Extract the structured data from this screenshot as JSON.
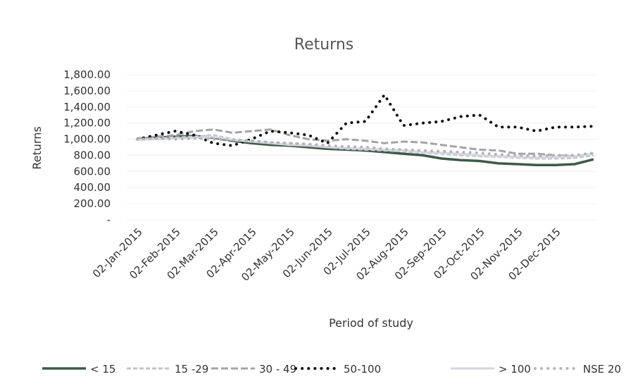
{
  "chart_data": {
    "type": "line",
    "title": "Returns",
    "y_label": "Returns",
    "x_label": "Period of study",
    "grid": true,
    "categories": [
      "02-Jan-2015",
      null,
      "02-Feb-2015",
      null,
      "02-Mar-2015",
      null,
      "02-Apr-2015",
      null,
      "02-May-2015",
      null,
      "02-Jun-2015",
      null,
      "02-Jul-2015",
      null,
      "02-Aug-2015",
      null,
      "02-Sep-2015",
      null,
      "02-Oct-2015",
      null,
      "02-Nov-2015",
      null,
      "02-Dec-2015",
      null,
      null
    ],
    "ylim": [
      0,
      1800
    ],
    "yticks": [
      {
        "value": 0,
        "label": "-"
      },
      {
        "value": 200,
        "label": "200.00"
      },
      {
        "value": 400,
        "label": "400.00"
      },
      {
        "value": 600,
        "label": "600.00"
      },
      {
        "value": 800,
        "label": "800.00"
      },
      {
        "value": 1000,
        "label": "1,000.00"
      },
      {
        "value": 1200,
        "label": "1,200.00"
      },
      {
        "value": 1400,
        "label": "1,400.00"
      },
      {
        "value": 1600,
        "label": "1,600.00"
      },
      {
        "value": 1800,
        "label": "1,800.00"
      }
    ],
    "series": [
      {
        "name": "< 15",
        "color": "#3d5a48",
        "dash": "solid",
        "values": [
          1000,
          1020,
          1030,
          1040,
          1020,
          980,
          950,
          930,
          920,
          900,
          880,
          870,
          860,
          840,
          820,
          800,
          760,
          740,
          730,
          700,
          690,
          680,
          680,
          690,
          750
        ]
      },
      {
        "name": "15 -29",
        "color": "#c4c4cc",
        "dash": "dash",
        "values": [
          1000,
          1010,
          1020,
          1030,
          1050,
          1000,
          980,
          960,
          950,
          930,
          900,
          880,
          870,
          860,
          850,
          830,
          820,
          800,
          790,
          780,
          770,
          760,
          760,
          770,
          800
        ]
      },
      {
        "name": "30 - 49",
        "color": "#a4a4a8",
        "dash": "longdash",
        "values": [
          1010,
          1030,
          1050,
          1100,
          1120,
          1080,
          1100,
          1120,
          1050,
          1000,
          980,
          1000,
          980,
          950,
          970,
          960,
          930,
          900,
          870,
          860,
          820,
          820,
          800,
          790,
          820
        ]
      },
      {
        "name": "50-100",
        "color": "#111111",
        "dash": "dot",
        "values": [
          1000,
          1050,
          1100,
          1050,
          950,
          920,
          1000,
          1100,
          1080,
          1050,
          950,
          1200,
          1220,
          1550,
          1170,
          1200,
          1220,
          1280,
          1300,
          1150,
          1150,
          1100,
          1150,
          1150,
          1160
        ]
      },
      {
        "name": "> 100",
        "color": "#d6d6de",
        "dash": "solid",
        "values": [
          990,
          1000,
          1010,
          1020,
          1030,
          990,
          970,
          950,
          930,
          920,
          900,
          890,
          880,
          870,
          860,
          840,
          830,
          820,
          800,
          790,
          780,
          770,
          780,
          790,
          820
        ]
      },
      {
        "name": "NSE 20",
        "color": "#b4b4bc",
        "dash": "dot",
        "values": [
          1000,
          1010,
          1000,
          1010,
          1000,
          990,
          980,
          960,
          950,
          940,
          920,
          910,
          900,
          880,
          870,
          860,
          850,
          840,
          830,
          810,
          800,
          790,
          800,
          800,
          830
        ]
      }
    ]
  }
}
